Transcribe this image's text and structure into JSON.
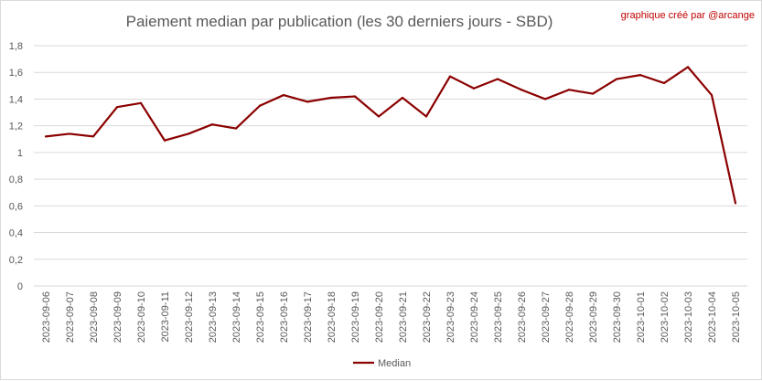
{
  "chart_data": {
    "type": "line",
    "title": "Paiement median par publication (les 30 derniers jours - SBD)",
    "annotation": "graphique créé par @arcange",
    "xlabel": "",
    "ylabel": "",
    "ylim": [
      0,
      1.8
    ],
    "yticks": [
      "0",
      "0,2",
      "0,4",
      "0,6",
      "0,8",
      "1",
      "1,2",
      "1,4",
      "1,6",
      "1,8"
    ],
    "grid": true,
    "legend_position": "bottom",
    "categories": [
      "2023-09-06",
      "2023-09-07",
      "2023-09-08",
      "2023-09-09",
      "2023-09-10",
      "2023-09-11",
      "2023-09-12",
      "2023-09-13",
      "2023-09-14",
      "2023-09-15",
      "2023-09-16",
      "2023-09-17",
      "2023-09-18",
      "2023-09-19",
      "2023-09-20",
      "2023-09-21",
      "2023-09-22",
      "2023-09-23",
      "2023-09-24",
      "2023-09-25",
      "2023-09-26",
      "2023-09-27",
      "2023-09-28",
      "2023-09-29",
      "2023-09-30",
      "2023-10-01",
      "2023-10-02",
      "2023-10-03",
      "2023-10-04",
      "2023-10-05"
    ],
    "series": [
      {
        "name": "Median",
        "color": "#8b0000",
        "values": [
          1.12,
          1.14,
          1.12,
          1.34,
          1.37,
          1.09,
          1.14,
          1.21,
          1.18,
          1.35,
          1.43,
          1.38,
          1.41,
          1.42,
          1.27,
          1.41,
          1.27,
          1.57,
          1.48,
          1.55,
          1.47,
          1.4,
          1.47,
          1.44,
          1.55,
          1.58,
          1.52,
          1.64,
          1.43,
          0.62
        ]
      }
    ]
  }
}
